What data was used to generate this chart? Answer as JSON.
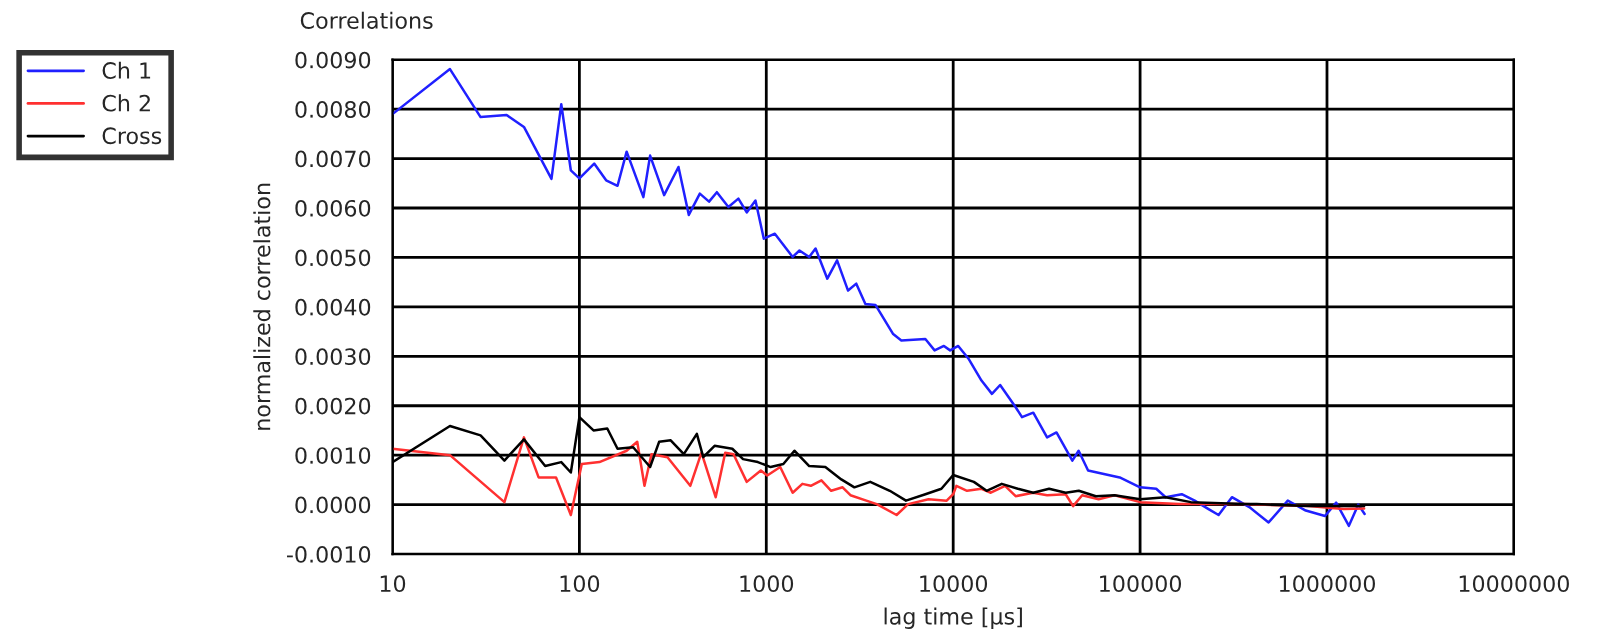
{
  "chart_data": {
    "type": "line",
    "title": "Correlations",
    "xlabel": "lag time [µs]",
    "ylabel": "normalized correlation",
    "log": "x",
    "grid": true,
    "legend": "top left",
    "marker": "none",
    "line_style": "solid",
    "xlim": [
      10,
      10000000
    ],
    "xticks": [
      10,
      100,
      1000,
      10000,
      100000,
      1000000,
      10000000
    ],
    "ylim": [
      -0.001,
      0.009
    ],
    "yticks": [
      {
        "value": -0.001,
        "label": "-0.0010"
      },
      {
        "value": 0.0,
        "label": "0.0000"
      },
      {
        "value": 0.001,
        "label": "0.0010"
      },
      {
        "value": 0.002,
        "label": "0.0020"
      },
      {
        "value": 0.003,
        "label": "0.0030"
      },
      {
        "value": 0.004,
        "label": "0.0040"
      },
      {
        "value": 0.005,
        "label": "0.0050"
      },
      {
        "value": 0.006,
        "label": "0.0060"
      },
      {
        "value": 0.007,
        "label": "0.0070"
      },
      {
        "value": 0.008,
        "label": "0.0080"
      },
      {
        "value": 0.009,
        "label": "0.0090"
      }
    ],
    "series": [
      {
        "name": "Ch 1",
        "color": "#2020ff",
        "x": [
          10,
          20.3,
          29.6,
          40.8,
          50.5,
          70.9,
          80,
          90,
          100,
          120,
          139,
          160,
          179,
          220,
          239,
          284,
          339,
          385,
          441,
          494,
          544,
          627,
          709,
          786,
          875,
          970,
          1111,
          1384,
          1505,
          1697,
          1835,
          2121,
          2392,
          2738,
          3030,
          3390,
          3837,
          4773,
          5280,
          7097,
          7955,
          8920,
          9630,
          10640,
          12140,
          14170,
          16120,
          17830,
          21590,
          23340,
          26820,
          31800,
          35700,
          43400,
          46900,
          52700,
          64000,
          77800,
          100000,
          122000,
          137000,
          167000,
          196000,
          230000,
          263000,
          310000,
          384000,
          487000,
          617000,
          770000,
          976000,
          1120000,
          1310000,
          1470000,
          1590000
        ],
        "values": [
          0.0079,
          0.00881,
          0.00784,
          0.00788,
          0.00764,
          0.00659,
          0.0081,
          0.00676,
          0.0066,
          0.0069,
          0.00656,
          0.00645,
          0.00714,
          0.00622,
          0.00706,
          0.00626,
          0.00683,
          0.00586,
          0.00629,
          0.00613,
          0.00632,
          0.00602,
          0.00619,
          0.00591,
          0.00615,
          0.00538,
          0.00548,
          0.00501,
          0.00514,
          0.00501,
          0.00518,
          0.00457,
          0.00494,
          0.00433,
          0.00447,
          0.00406,
          0.00404,
          0.00345,
          0.00332,
          0.00335,
          0.00312,
          0.00321,
          0.00312,
          0.00321,
          0.00294,
          0.00251,
          0.00224,
          0.00242,
          0.00197,
          0.00177,
          0.00186,
          0.00136,
          0.00146,
          0.00089,
          0.00109,
          0.00069,
          0.00062,
          0.00055,
          0.00035,
          0.00032,
          0.00015,
          0.00021,
          8e-05,
          -8e-05,
          -0.00021,
          0.00015,
          -5e-05,
          -0.00036,
          8e-05,
          -0.00012,
          -0.00023,
          4e-05,
          -0.00043,
          0.0,
          -0.00019
        ]
      },
      {
        "name": "Ch 2",
        "color": "#ff3030",
        "x": [
          10,
          20.3,
          39.7,
          50.5,
          60.5,
          75,
          90,
          103,
          128,
          179,
          204,
          223,
          243,
          296,
          392,
          450,
          536,
          603,
          668,
          786,
          935,
          1012,
          1187,
          1384,
          1560,
          1731,
          1972,
          2224,
          2560,
          2820,
          3430,
          3900,
          4980,
          5740,
          7380,
          9230,
          10000,
          10400,
          11860,
          14170,
          15900,
          18950,
          21590,
          26750,
          31800,
          40000,
          43800,
          49000,
          60000,
          73000,
          100000,
          162000,
          360000,
          800000,
          1230000,
          1580000
        ],
        "values": [
          0.00113,
          0.001,
          5e-05,
          0.00136,
          0.00055,
          0.00055,
          -0.00021,
          0.00082,
          0.00086,
          0.00109,
          0.00127,
          0.00038,
          0.00102,
          0.00096,
          0.00038,
          0.00105,
          0.00015,
          0.00105,
          0.00102,
          0.00046,
          0.00069,
          0.00059,
          0.00076,
          0.00024,
          0.00042,
          0.00038,
          0.00049,
          0.00028,
          0.00035,
          0.00019,
          8e-05,
          1e-05,
          -0.00021,
          1e-05,
          0.00011,
          8e-05,
          0.00021,
          0.00038,
          0.00028,
          0.00032,
          0.00024,
          0.00038,
          0.00017,
          0.00024,
          0.00019,
          0.00021,
          -3e-05,
          0.00019,
          0.00011,
          0.00019,
          5e-05,
          1e-05,
          1e-05,
          -3e-05,
          -9e-05,
          -8e-05
        ]
      },
      {
        "name": "Cross",
        "color": "#000000",
        "x": [
          10,
          20.3,
          29.6,
          39.7,
          50.5,
          65.6,
          80,
          90,
          100,
          119,
          141,
          160,
          194,
          239,
          267,
          308,
          362,
          425,
          460,
          529,
          658,
          751,
          901,
          1055,
          1234,
          1414,
          1697,
          2070,
          2520,
          2960,
          3600,
          4580,
          5590,
          7100,
          8650,
          10000,
          12900,
          15100,
          18200,
          22200,
          26800,
          32600,
          40000,
          47000,
          58000,
          73000,
          100000,
          137000,
          187000,
          360000,
          420000,
          800000,
          1270000,
          1580000
        ],
        "values": [
          0.00086,
          0.00159,
          0.0014,
          0.00089,
          0.00132,
          0.00078,
          0.00086,
          0.00065,
          0.00177,
          0.0015,
          0.00154,
          0.00113,
          0.00116,
          0.00076,
          0.00127,
          0.0013,
          0.00102,
          0.00143,
          0.00096,
          0.00119,
          0.00113,
          0.00092,
          0.00086,
          0.00076,
          0.00082,
          0.00109,
          0.00078,
          0.00076,
          0.00051,
          0.00035,
          0.00046,
          0.00028,
          8e-05,
          0.00021,
          0.00032,
          0.0006,
          0.00046,
          0.00028,
          0.00042,
          0.00032,
          0.00024,
          0.00032,
          0.00024,
          0.00028,
          0.00017,
          0.00019,
          0.00011,
          0.00015,
          5e-05,
          1e-05,
          1e-05,
          -3e-05,
          -3e-05,
          -3e-05
        ]
      }
    ]
  }
}
